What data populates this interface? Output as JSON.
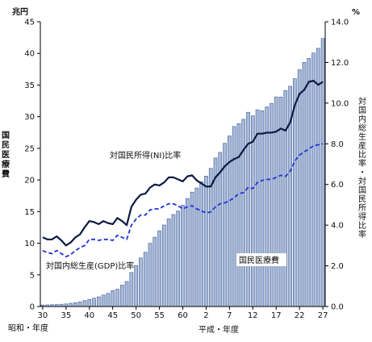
{
  "chart_data": {
    "type": "bar",
    "y_left": {
      "unit": "兆円",
      "label": "国民医療費",
      "ylim": [
        0,
        45
      ],
      "ticks": [
        "0",
        "5",
        "10",
        "15",
        "20",
        "25",
        "30",
        "35",
        "40",
        "45"
      ]
    },
    "y_right": {
      "unit": "%",
      "label": "対国内総生産比率・対国民所得比率",
      "ylim": [
        0,
        14
      ],
      "ticks": [
        "0.0",
        "2.0",
        "4.0",
        "6.0",
        "8.0",
        "10.0",
        "12.0",
        "14.0"
      ]
    },
    "x_axis": {
      "showa_label": "昭和・年度",
      "heisei_label": "平成・年度",
      "tick_labels": [
        "30",
        "35",
        "40",
        "45",
        "50",
        "55",
        "60",
        "2",
        "7",
        "12",
        "17",
        "22",
        "27"
      ]
    },
    "categories": [
      "S30",
      "S31",
      "S32",
      "S33",
      "S34",
      "S35",
      "S36",
      "S37",
      "S38",
      "S39",
      "S40",
      "S41",
      "S42",
      "S43",
      "S44",
      "S45",
      "S46",
      "S47",
      "S48",
      "S49",
      "S50",
      "S51",
      "S52",
      "S53",
      "S54",
      "S55",
      "S56",
      "S57",
      "S58",
      "S59",
      "S60",
      "S61",
      "S62",
      "S63",
      "H1",
      "H2",
      "H3",
      "H4",
      "H5",
      "H6",
      "H7",
      "H8",
      "H9",
      "H10",
      "H11",
      "H12",
      "H13",
      "H14",
      "H15",
      "H16",
      "H17",
      "H18",
      "H19",
      "H20",
      "H21",
      "H22",
      "H23",
      "H24",
      "H25",
      "H26",
      "H27"
    ],
    "series": [
      {
        "name": "国民医療費",
        "type": "bar",
        "axis": "left",
        "color": "#a9bad9",
        "values": [
          0.24,
          0.26,
          0.29,
          0.32,
          0.36,
          0.41,
          0.51,
          0.61,
          0.74,
          0.94,
          1.12,
          1.32,
          1.52,
          1.81,
          2.08,
          2.5,
          2.73,
          3.38,
          3.95,
          5.38,
          6.48,
          7.68,
          8.57,
          10.0,
          10.95,
          11.98,
          12.88,
          13.86,
          14.54,
          15.09,
          16.02,
          17.07,
          18.08,
          18.73,
          19.73,
          20.61,
          21.83,
          23.48,
          24.36,
          25.79,
          26.96,
          28.45,
          28.91,
          29.58,
          30.7,
          30.14,
          31.1,
          30.95,
          31.54,
          32.11,
          33.13,
          33.11,
          34.14,
          34.81,
          36.0,
          37.42,
          38.59,
          39.21,
          40.06,
          40.81,
          42.36
        ]
      },
      {
        "name": "対国民所得(NI)比率",
        "type": "line",
        "axis": "right",
        "color": "#0a1a44",
        "dash": "none",
        "values": [
          3.4,
          3.3,
          3.3,
          3.45,
          3.25,
          3.0,
          3.15,
          3.4,
          3.55,
          3.9,
          4.2,
          4.15,
          4.05,
          4.2,
          4.1,
          4.05,
          4.35,
          4.2,
          4.0,
          4.9,
          5.25,
          5.5,
          5.55,
          5.85,
          6.0,
          5.95,
          6.1,
          6.35,
          6.35,
          6.25,
          6.15,
          6.4,
          6.45,
          6.2,
          6.05,
          5.9,
          5.9,
          6.35,
          6.6,
          6.9,
          7.1,
          7.25,
          7.35,
          7.7,
          8.0,
          8.1,
          8.5,
          8.5,
          8.55,
          8.55,
          8.6,
          8.75,
          8.65,
          9.05,
          9.9,
          10.45,
          10.65,
          11.05,
          11.1,
          10.9,
          11.05
        ]
      },
      {
        "name": "対国内総生産(GDP)比率",
        "type": "line",
        "axis": "right",
        "color": "#1f35d6",
        "dash": "5,3",
        "values": [
          2.75,
          2.65,
          2.6,
          2.75,
          2.6,
          2.45,
          2.55,
          2.75,
          2.9,
          3.0,
          3.3,
          3.3,
          3.25,
          3.3,
          3.3,
          3.25,
          3.5,
          3.4,
          3.3,
          4.0,
          4.3,
          4.5,
          4.5,
          4.75,
          4.8,
          4.8,
          4.95,
          5.05,
          5.05,
          4.95,
          4.8,
          4.9,
          4.95,
          4.8,
          4.7,
          4.6,
          4.65,
          4.9,
          5.05,
          5.1,
          5.2,
          5.35,
          5.55,
          5.6,
          5.85,
          5.8,
          6.1,
          6.2,
          6.25,
          6.25,
          6.35,
          6.45,
          6.4,
          6.65,
          7.15,
          7.45,
          7.6,
          7.75,
          7.9,
          7.95,
          8.0
        ]
      }
    ],
    "annotations": {
      "ni_label": "対国民所得(NI)比率",
      "gdp_label": "対国内総生産(GDP)比率",
      "bar_label": "国民医療費"
    }
  }
}
